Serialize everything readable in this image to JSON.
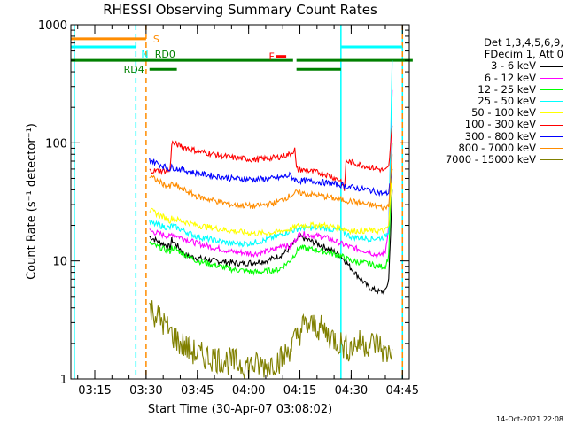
{
  "chart_data": {
    "type": "line",
    "title": "RHESSI Observing Summary Count Rates",
    "xlabel": "Start Time (30-Apr-07 03:08:02)",
    "ylabel": "Count Rate (s⁻¹ detector⁻¹)",
    "yscale": "log",
    "ylim": [
      1,
      1000
    ],
    "xlim": [
      "03:08",
      "04:47"
    ],
    "x_ticks": [
      "03:15",
      "03:30",
      "03:45",
      "04:00",
      "04:15",
      "04:30",
      "04:45"
    ],
    "y_ticks": [
      "1",
      "10",
      "100",
      "1000"
    ],
    "legend": {
      "placement": "right",
      "header": [
        "Det 1,3,4,5,6,9,",
        "FDecim 1, Att 0"
      ],
      "entries": [
        {
          "label": "3 - 6 keV",
          "color": "#000000"
        },
        {
          "label": "6 - 12 keV",
          "color": "#ff00ff"
        },
        {
          "label": "12 - 25 keV",
          "color": "#00ff00"
        },
        {
          "label": "25 - 50 keV",
          "color": "#00ffff"
        },
        {
          "label": "50 - 100 keV",
          "color": "#ffff00"
        },
        {
          "label": "100 - 300 keV",
          "color": "#ff0000"
        },
        {
          "label": "300 - 800 keV",
          "color": "#0000ff"
        },
        {
          "label": "800 - 7000 keV",
          "color": "#ff8c00"
        },
        {
          "label": "7000 - 15000 keV",
          "color": "#808000"
        }
      ]
    },
    "series": [
      {
        "name": "3 - 6 keV",
        "color": "#000000",
        "x": [
          "03:31",
          "03:37",
          "03:37.5",
          "03:42",
          "03:50",
          "03:58",
          "04:05",
          "04:09",
          "04:11",
          "04:15",
          "04:20",
          "04:25",
          "04:27",
          "04:31",
          "04:35",
          "04:38",
          "04:40",
          "04:41",
          "04:42"
        ],
        "y": [
          16,
          13,
          15,
          11,
          10,
          9.5,
          10,
          11,
          12,
          16,
          14,
          12,
          11,
          8,
          6,
          5.5,
          5.5,
          7,
          40
        ]
      },
      {
        "name": "6 - 12 keV",
        "color": "#ff00ff",
        "x": [
          "03:31",
          "03:37",
          "03:37.5",
          "03:45",
          "03:55",
          "04:02",
          "04:08",
          "04:10",
          "04:12",
          "04:15",
          "04:22",
          "04:27",
          "04:30",
          "04:35",
          "04:38",
          "04:40",
          "04:41",
          "04:42"
        ],
        "y": [
          18,
          16,
          17,
          14,
          12,
          11.5,
          12.5,
          14,
          13,
          17,
          16,
          14,
          13,
          12,
          11,
          12,
          20,
          280
        ]
      },
      {
        "name": "12 - 25 keV",
        "color": "#00ff00",
        "x": [
          "03:31",
          "03:37",
          "03:37.5",
          "03:45",
          "03:55",
          "04:03",
          "04:09",
          "04:12",
          "04:15",
          "04:22",
          "04:27",
          "04:30",
          "04:35",
          "04:38",
          "04:40",
          "04:41",
          "04:42"
        ],
        "y": [
          14,
          12,
          13,
          10,
          8.5,
          8,
          8.5,
          10,
          13,
          12,
          11,
          10,
          9.5,
          9,
          9,
          11,
          100
        ]
      },
      {
        "name": "25 - 50 keV",
        "color": "#00ffff",
        "x": [
          "03:31",
          "03:37",
          "03:37.5",
          "03:45",
          "03:55",
          "04:00",
          "04:05",
          "04:10",
          "04:15",
          "04:22",
          "04:27",
          "04:30",
          "04:35",
          "04:38",
          "04:40",
          "04:41",
          "04:42"
        ],
        "y": [
          21,
          19,
          20,
          16,
          14,
          14,
          15,
          17,
          19,
          19,
          18,
          16,
          15.5,
          15.5,
          16,
          18,
          500
        ]
      },
      {
        "name": "50 - 100 keV",
        "color": "#ffff00",
        "x": [
          "03:31",
          "03:37",
          "03:37.5",
          "03:45",
          "03:55",
          "04:02",
          "04:08",
          "04:12",
          "04:15",
          "04:22",
          "04:27",
          "04:30",
          "04:35",
          "04:38",
          "04:40",
          "04:41",
          "04:42"
        ],
        "y": [
          27,
          22,
          23,
          20,
          18,
          17,
          17.5,
          18.5,
          20,
          20,
          19,
          18,
          18,
          18,
          18,
          20,
          60
        ]
      },
      {
        "name": "100 - 300 keV",
        "color": "#ff0000",
        "x": [
          "03:31",
          "03:37",
          "03:37.5",
          "03:45",
          "03:55",
          "04:02",
          "04:08",
          "04:12",
          "04:13.5",
          "04:14",
          "04:22",
          "04:27",
          "04:28",
          "04:28.5",
          "04:33",
          "04:38",
          "04:40",
          "04:41",
          "04:42"
        ],
        "y": [
          58,
          58,
          100,
          85,
          75,
          72,
          75,
          80,
          88,
          60,
          55,
          48,
          40,
          70,
          65,
          60,
          58,
          62,
          140
        ]
      },
      {
        "name": "300 - 800 keV",
        "color": "#0000ff",
        "x": [
          "03:31",
          "03:37",
          "03:37.5",
          "03:45",
          "03:55",
          "04:02",
          "04:08",
          "04:12",
          "04:14",
          "04:20",
          "04:27",
          "04:30",
          "04:35",
          "04:38",
          "04:40",
          "04:41",
          "04:42"
        ],
        "y": [
          72,
          60,
          62,
          55,
          50,
          49,
          50,
          53,
          48,
          47,
          44,
          42,
          40,
          38,
          37,
          38,
          60
        ]
      },
      {
        "name": "800 - 7000 keV",
        "color": "#ff8c00",
        "x": [
          "03:31",
          "03:37",
          "03:37.5",
          "03:45",
          "03:55",
          "04:02",
          "04:08",
          "04:14",
          "04:20",
          "04:27",
          "04:30",
          "04:35",
          "04:38",
          "04:40",
          "04:41",
          "04:42"
        ],
        "y": [
          52,
          42,
          45,
          35,
          30,
          29,
          31,
          38,
          36,
          33,
          32,
          30,
          29,
          28,
          30,
          80
        ]
      },
      {
        "name": "7000 - 15000 keV",
        "color": "#808000",
        "x": [
          "03:31",
          "03:35",
          "03:37",
          "03:40",
          "03:45",
          "03:50",
          "03:55",
          "04:00",
          "04:05",
          "04:10",
          "04:13",
          "04:16",
          "04:20",
          "04:25",
          "04:29",
          "04:32",
          "04:35",
          "04:38",
          "04:40",
          "04:42"
        ],
        "y": [
          4,
          3,
          2.5,
          2,
          1.6,
          1.5,
          1.4,
          1.3,
          1.3,
          1.5,
          2,
          2.8,
          2.8,
          2.2,
          1.8,
          2,
          2,
          2,
          1.6,
          1.8
        ]
      }
    ],
    "annotations": [
      {
        "label": "S",
        "color": "#ff8c00",
        "x_start": "03:08",
        "x_end": "03:30",
        "y": 760
      },
      {
        "label": "N",
        "color": "#00ffff",
        "x_start": "03:08",
        "x_end": "03:27",
        "y": 650
      },
      {
        "label": "RD0",
        "color": "#008000",
        "segments": [
          [
            "03:08",
            "04:13"
          ],
          [
            "04:14",
            "04:48"
          ]
        ],
        "y": 500
      },
      {
        "label": "RD4",
        "color": "#008000",
        "segments": [
          [
            "03:31",
            "03:39"
          ],
          [
            "04:14",
            "04:27"
          ]
        ],
        "y": 420
      },
      {
        "label": "F",
        "color": "#ff0000",
        "x_start": "04:08",
        "x_end": "04:11",
        "y": 540
      },
      {
        "label": "",
        "color": "#00ffff",
        "x_start": "04:27",
        "x_end": "04:45",
        "y": 650
      }
    ],
    "vertical_lines": [
      {
        "x": "03:09",
        "color": "#00ffff",
        "style": "solid"
      },
      {
        "x": "03:27",
        "color": "#00ffff",
        "style": "dashed"
      },
      {
        "x": "03:30",
        "color": "#ff8c00",
        "style": "dashed"
      },
      {
        "x": "04:27",
        "color": "#00ffff",
        "style": "solid"
      },
      {
        "x": "04:45",
        "color": "#00ffff",
        "style": "solid"
      },
      {
        "x": "04:45",
        "color": "#ff8c00",
        "style": "dashed"
      }
    ]
  },
  "timestamp": "14-Oct-2021 22:08"
}
